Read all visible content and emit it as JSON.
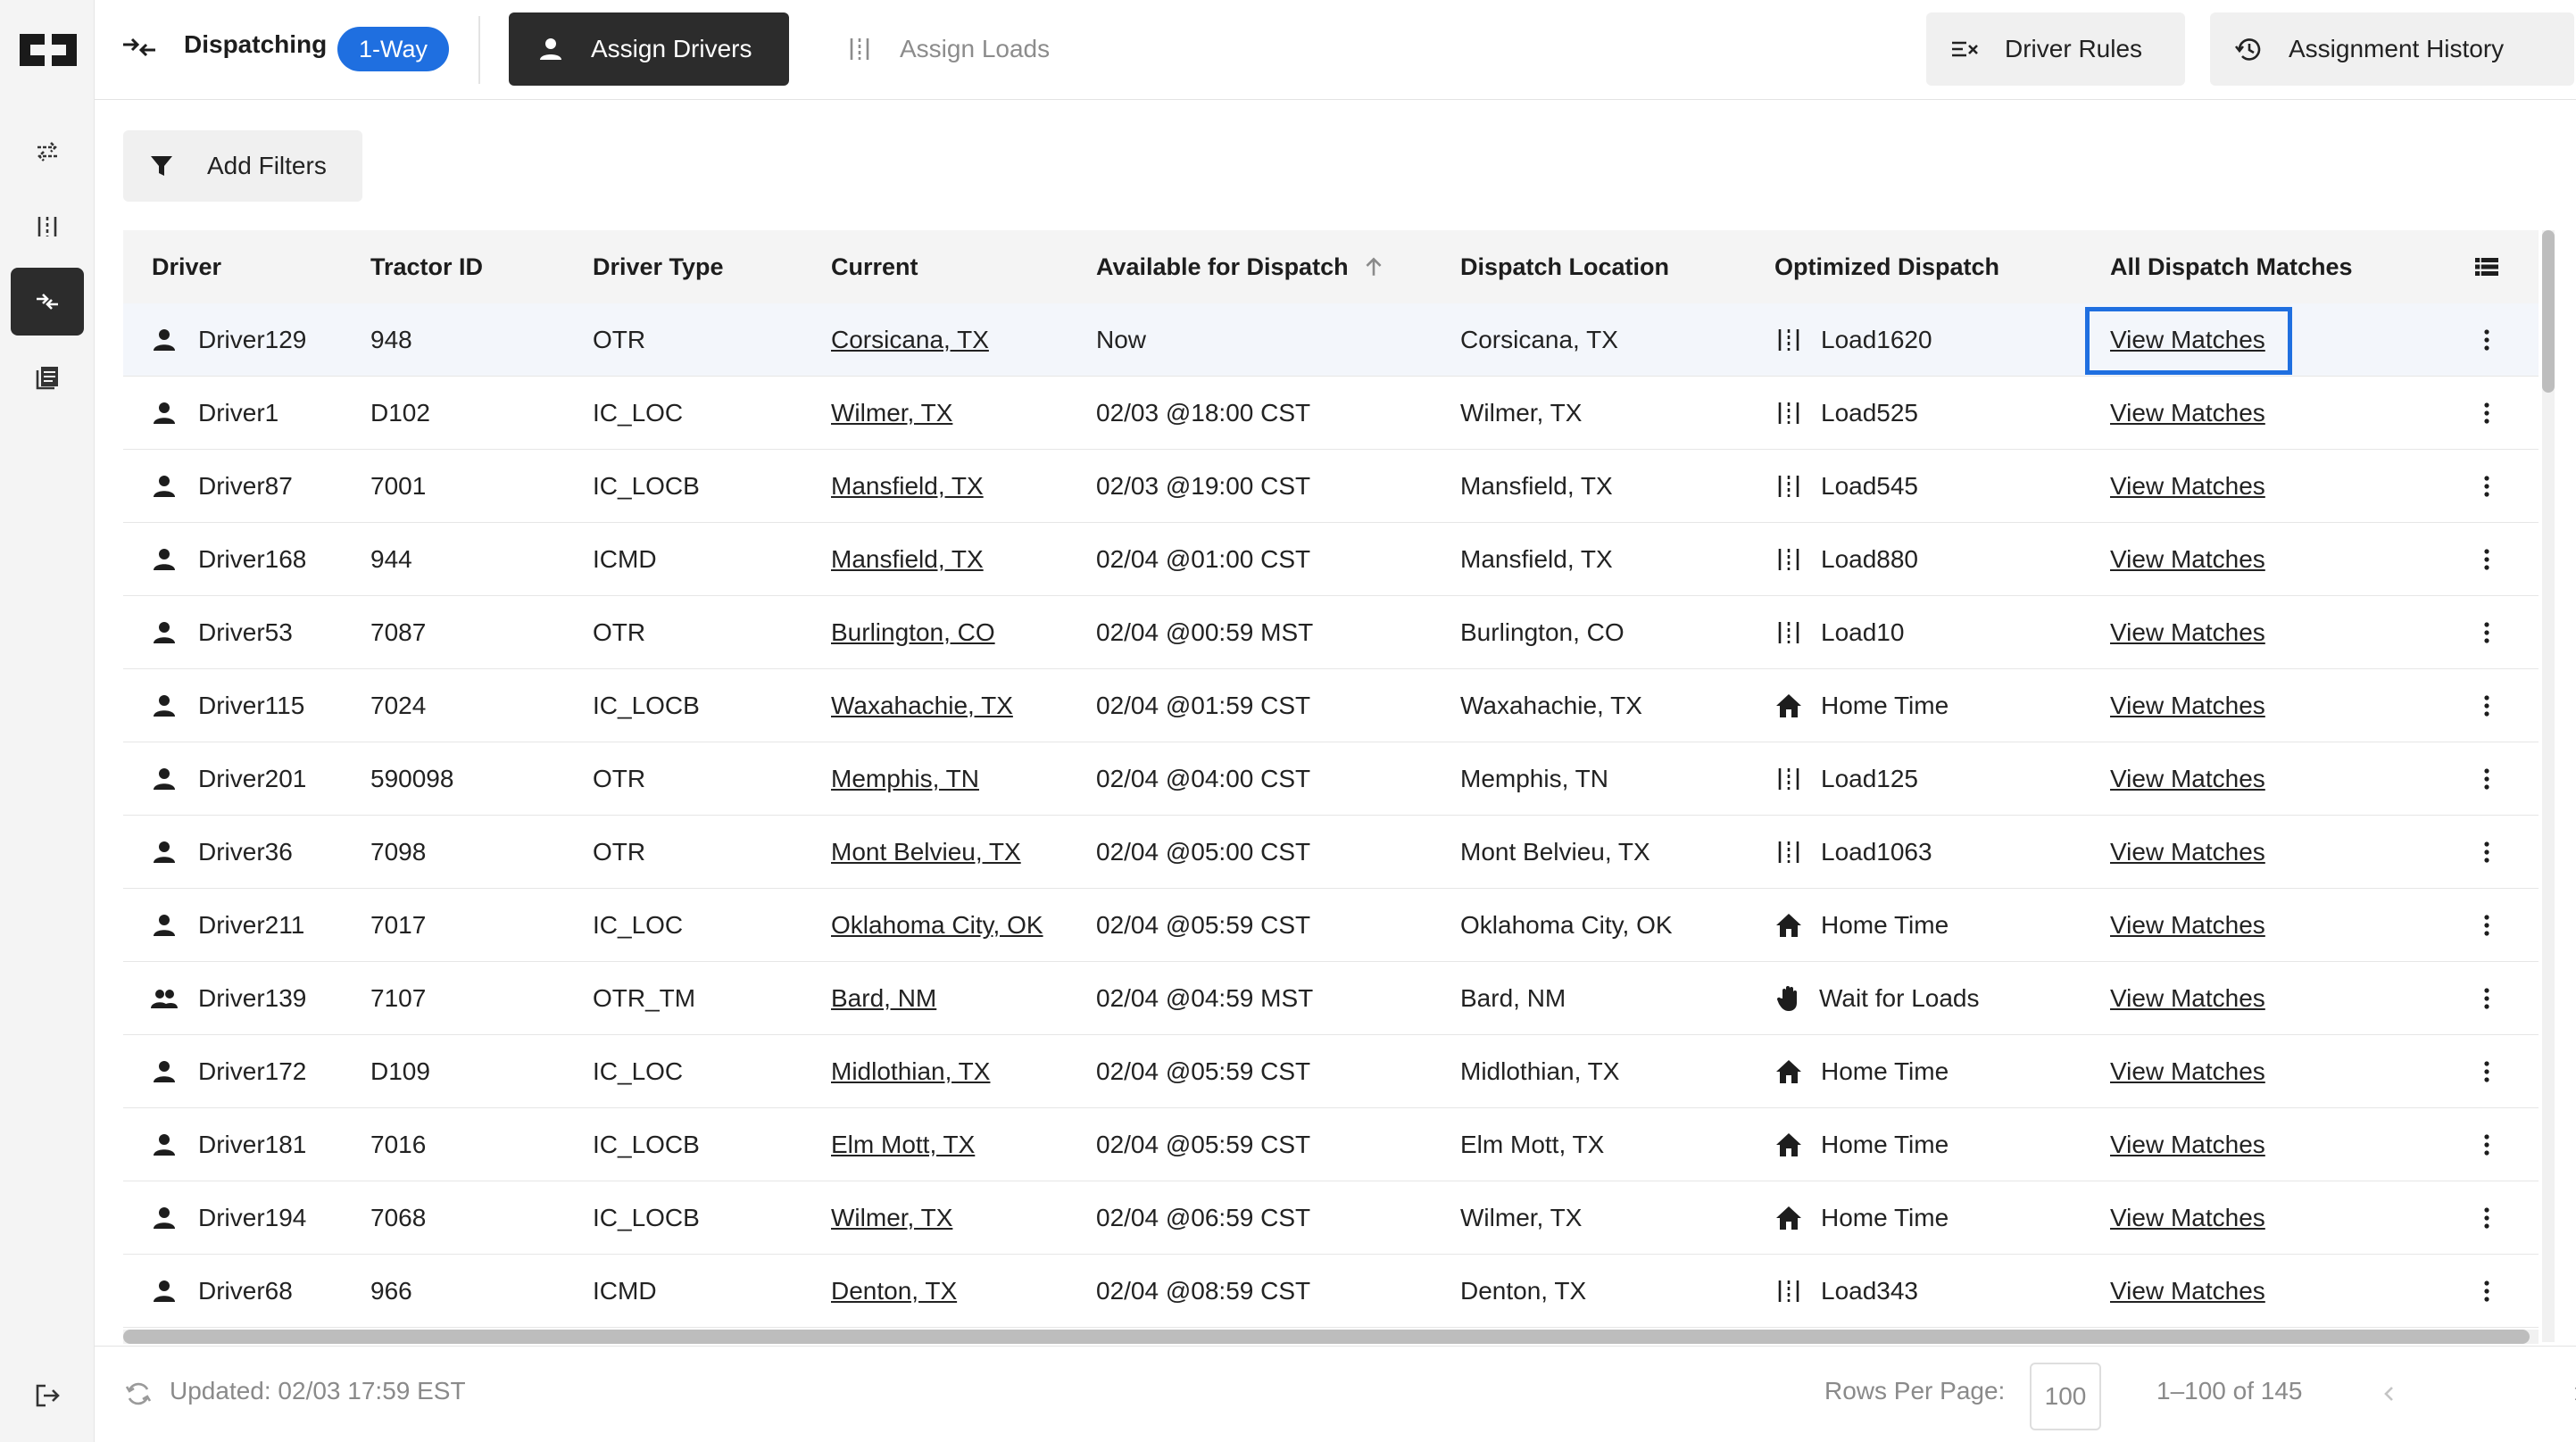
{
  "header": {
    "title": "Dispatching",
    "mode_badge": "1-Way",
    "tabs": [
      {
        "label": "Assign Drivers",
        "active": true
      },
      {
        "label": "Assign Loads",
        "active": false
      }
    ],
    "driver_rules_label": "Driver Rules",
    "history_label": "Assignment History"
  },
  "sidebar": {
    "items": [
      {
        "icon": "swap-arrows-icon",
        "active": false
      },
      {
        "icon": "load-columns-icon",
        "active": false
      },
      {
        "icon": "dispatch-merge-icon",
        "active": true
      },
      {
        "icon": "document-list-icon",
        "active": false
      }
    ],
    "logout_icon": "logout-icon"
  },
  "filters": {
    "add_label": "Add Filters"
  },
  "table": {
    "columns": [
      "Driver",
      "Tractor ID",
      "Driver Type",
      "Current",
      "Available for Dispatch",
      "Dispatch Location",
      "Optimized Dispatch",
      "All Dispatch Matches"
    ],
    "sort_column": "Available for Dispatch",
    "sort_direction": "ascending",
    "rows": [
      {
        "driver": "Driver129",
        "team": false,
        "tractor": "948",
        "type": "OTR",
        "current": "Corsicana, TX",
        "available": "Now",
        "location": "Corsicana, TX",
        "dispatch_kind": "load",
        "dispatch": "Load1620",
        "matches": "View Matches"
      },
      {
        "driver": "Driver1",
        "team": false,
        "tractor": "D102",
        "type": "IC_LOC",
        "current": "Wilmer, TX",
        "available": "02/03 @18:00 CST",
        "location": "Wilmer, TX",
        "dispatch_kind": "load",
        "dispatch": "Load525",
        "matches": "View Matches"
      },
      {
        "driver": "Driver87",
        "team": false,
        "tractor": "7001",
        "type": "IC_LOCB",
        "current": "Mansfield, TX",
        "available": "02/03 @19:00 CST",
        "location": "Mansfield, TX",
        "dispatch_kind": "load",
        "dispatch": "Load545",
        "matches": "View Matches"
      },
      {
        "driver": "Driver168",
        "team": false,
        "tractor": "944",
        "type": "ICMD",
        "current": "Mansfield, TX",
        "available": "02/04 @01:00 CST",
        "location": "Mansfield, TX",
        "dispatch_kind": "load",
        "dispatch": "Load880",
        "matches": "View Matches"
      },
      {
        "driver": "Driver53",
        "team": false,
        "tractor": "7087",
        "type": "OTR",
        "current": "Burlington, CO",
        "available": "02/04 @00:59 MST",
        "location": "Burlington, CO",
        "dispatch_kind": "load",
        "dispatch": "Load10",
        "matches": "View Matches"
      },
      {
        "driver": "Driver115",
        "team": false,
        "tractor": "7024",
        "type": "IC_LOCB",
        "current": "Waxahachie, TX",
        "available": "02/04 @01:59 CST",
        "location": "Waxahachie, TX",
        "dispatch_kind": "home",
        "dispatch": "Home Time",
        "matches": "View Matches"
      },
      {
        "driver": "Driver201",
        "team": false,
        "tractor": "590098",
        "type": "OTR",
        "current": "Memphis, TN",
        "available": "02/04 @04:00 CST",
        "location": "Memphis, TN",
        "dispatch_kind": "load",
        "dispatch": "Load125",
        "matches": "View Matches"
      },
      {
        "driver": "Driver36",
        "team": false,
        "tractor": "7098",
        "type": "OTR",
        "current": "Mont Belvieu, TX",
        "available": "02/04 @05:00 CST",
        "location": "Mont Belvieu, TX",
        "dispatch_kind": "load",
        "dispatch": "Load1063",
        "matches": "View Matches"
      },
      {
        "driver": "Driver211",
        "team": false,
        "tractor": "7017",
        "type": "IC_LOC",
        "current": "Oklahoma City, OK",
        "available": "02/04 @05:59 CST",
        "location": "Oklahoma City, OK",
        "dispatch_kind": "home",
        "dispatch": "Home Time",
        "matches": "View Matches"
      },
      {
        "driver": "Driver139",
        "team": true,
        "tractor": "7107",
        "type": "OTR_TM",
        "current": "Bard, NM",
        "available": "02/04 @04:59 MST",
        "location": "Bard, NM",
        "dispatch_kind": "wait",
        "dispatch": "Wait for Loads",
        "matches": "View Matches"
      },
      {
        "driver": "Driver172",
        "team": false,
        "tractor": "D109",
        "type": "IC_LOC",
        "current": "Midlothian, TX",
        "available": "02/04 @05:59 CST",
        "location": "Midlothian, TX",
        "dispatch_kind": "home",
        "dispatch": "Home Time",
        "matches": "View Matches"
      },
      {
        "driver": "Driver181",
        "team": false,
        "tractor": "7016",
        "type": "IC_LOCB",
        "current": "Elm Mott, TX",
        "available": "02/04 @05:59 CST",
        "location": "Elm Mott, TX",
        "dispatch_kind": "home",
        "dispatch": "Home Time",
        "matches": "View Matches"
      },
      {
        "driver": "Driver194",
        "team": false,
        "tractor": "7068",
        "type": "IC_LOCB",
        "current": "Wilmer, TX",
        "available": "02/04 @06:59 CST",
        "location": "Wilmer, TX",
        "dispatch_kind": "home",
        "dispatch": "Home Time",
        "matches": "View Matches"
      },
      {
        "driver": "Driver68",
        "team": false,
        "tractor": "966",
        "type": "ICMD",
        "current": "Denton, TX",
        "available": "02/04 @08:59 CST",
        "location": "Denton, TX",
        "dispatch_kind": "load",
        "dispatch": "Load343",
        "matches": "View Matches"
      }
    ]
  },
  "footer": {
    "updated": "Updated: 02/03 17:59 EST",
    "rows_per_page_label": "Rows Per Page:",
    "rows_per_page": "100",
    "range": "1–100 of 145"
  },
  "colors": {
    "accent": "#1f6fe0",
    "dark_button": "#2c2c2c",
    "highlight_row": "#f3f6fb"
  }
}
